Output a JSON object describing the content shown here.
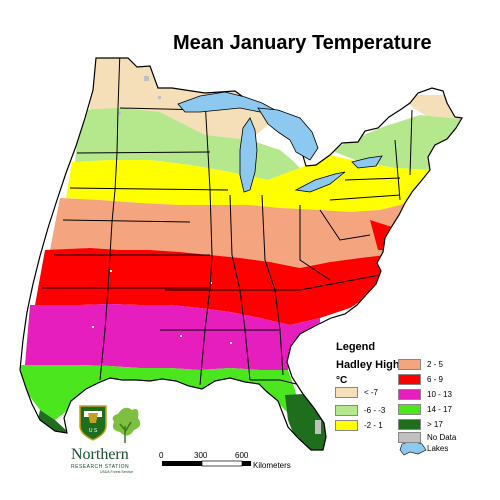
{
  "title": "Mean January Temperature",
  "legend": {
    "title": "Legend",
    "subtitle": "Hadley High",
    "unit": "°C",
    "items": [
      {
        "label": "< -7",
        "color": "#f5dfb9"
      },
      {
        "label": "-6 - -3",
        "color": "#b5e88c"
      },
      {
        "label": "-2 - 1",
        "color": "#ffff00"
      },
      {
        "label": "2 - 5",
        "color": "#f4a57f"
      },
      {
        "label": "6 - 9",
        "color": "#ff0000"
      },
      {
        "label": "10 - 13",
        "color": "#e61ebe"
      },
      {
        "label": "14 - 17",
        "color": "#4ce61e"
      },
      {
        "label": "> 17",
        "color": "#1e6e1e"
      },
      {
        "label": "No Data",
        "color": "#c0c0c0"
      },
      {
        "label": "Lakes",
        "color": "#8cc8f0"
      }
    ]
  },
  "scale": {
    "ticks": [
      "0",
      "300",
      "600"
    ],
    "unit": "Kilometers"
  },
  "logo": {
    "name": "Northern",
    "subname": "RESEARCH STATION",
    "agency": "USDA Forest Service"
  }
}
